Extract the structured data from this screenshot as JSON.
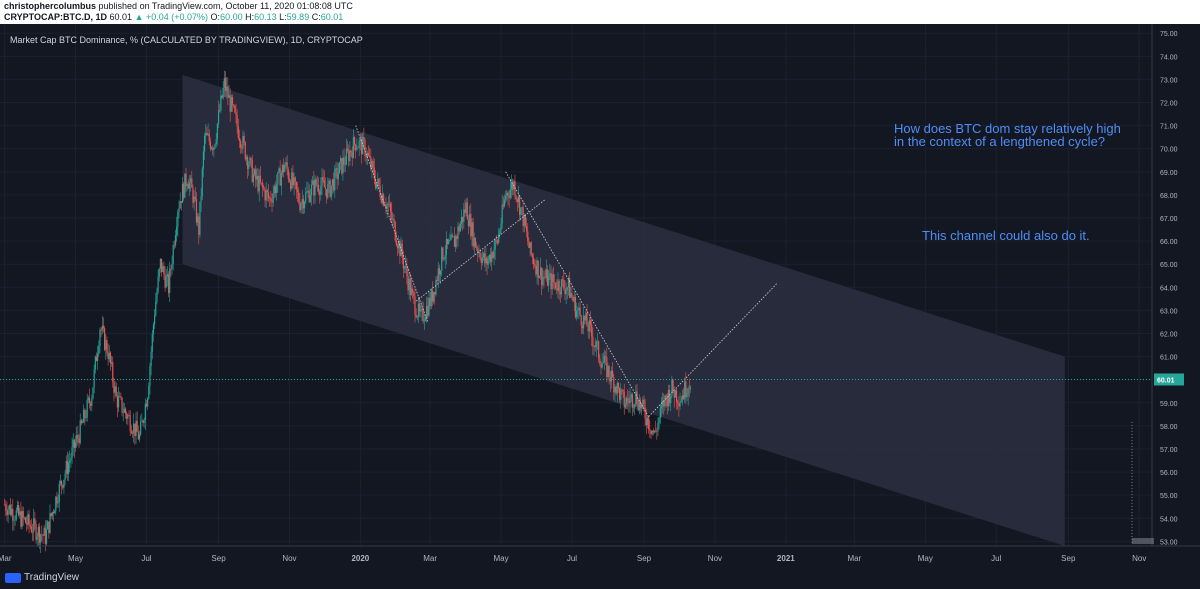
{
  "header": {
    "author": "christophercolumbus",
    "published_text": "published on TradingView.com, October 11, 2020 01:08:08 UTC",
    "symbol_line": "CRYPTOCAP:BTC.D, 1D",
    "last": "60.01",
    "change": "▲ +0.04 (+0.07%)",
    "o_label": "O:",
    "o": "60.00",
    "h_label": "H:",
    "h": "60.13",
    "l_label": "L:",
    "l": "59.89",
    "c_label": "C:",
    "c": "60.01"
  },
  "chart_title": "Market Cap BTC Dominance, % (CALCULATED BY TRADINGVIEW), 1D, CRYPTOCAP",
  "annotations": {
    "note1_line1": "How does BTC dom stay relatively high",
    "note1_line2": "in the context of a lengthened cycle?",
    "note2": "This channel could also do it."
  },
  "footer": {
    "brand": "TradingView"
  },
  "colors": {
    "background": "#131722",
    "up": "#26a69a",
    "down": "#ef5350",
    "channel_fill": "#2a2e3f",
    "note": "#4e8ef7",
    "price_line": "#26a69a"
  },
  "chart_data": {
    "type": "candlestick",
    "title": "Market Cap BTC Dominance, % (CALCULATED BY TRADINGVIEW), 1D, CRYPTOCAP",
    "ylim": [
      52.8,
      75.4
    ],
    "y_ticks": [
      "75.00",
      "74.00",
      "73.00",
      "72.00",
      "71.00",
      "70.00",
      "69.00",
      "68.00",
      "67.00",
      "66.00",
      "65.00",
      "64.00",
      "63.00",
      "62.00",
      "61.00",
      "60.00",
      "59.00",
      "58.00",
      "57.00",
      "56.00",
      "55.00",
      "54.00",
      "53.00"
    ],
    "x_ticks": [
      {
        "label": "Mar",
        "date": "2019-03-01"
      },
      {
        "label": "May",
        "date": "2019-05-01"
      },
      {
        "label": "Jul",
        "date": "2019-07-01"
      },
      {
        "label": "Sep",
        "date": "2019-09-01"
      },
      {
        "label": "Nov",
        "date": "2019-11-01"
      },
      {
        "label": "2020",
        "date": "2020-01-01"
      },
      {
        "label": "Mar",
        "date": "2020-03-01"
      },
      {
        "label": "May",
        "date": "2020-05-01"
      },
      {
        "label": "Jul",
        "date": "2020-07-01"
      },
      {
        "label": "Sep",
        "date": "2020-09-01"
      },
      {
        "label": "Nov",
        "date": "2020-11-01"
      },
      {
        "label": "2021",
        "date": "2021-01-01"
      },
      {
        "label": "Mar",
        "date": "2021-03-01"
      },
      {
        "label": "May",
        "date": "2021-05-01"
      },
      {
        "label": "Jul",
        "date": "2021-07-01"
      },
      {
        "label": "Sep",
        "date": "2021-09-01"
      },
      {
        "label": "Nov",
        "date": "2021-11-01"
      }
    ],
    "last_price": "60.01",
    "price_path": [
      {
        "date": "2019-03-01",
        "value": 54.6
      },
      {
        "date": "2019-03-20",
        "value": 53.8
      },
      {
        "date": "2019-04-05",
        "value": 53.2
      },
      {
        "date": "2019-04-15",
        "value": 55.0
      },
      {
        "date": "2019-04-25",
        "value": 56.4
      },
      {
        "date": "2019-05-05",
        "value": 57.8
      },
      {
        "date": "2019-05-15",
        "value": 59.4
      },
      {
        "date": "2019-05-22",
        "value": 62.3
      },
      {
        "date": "2019-05-29",
        "value": 61.2
      },
      {
        "date": "2019-06-05",
        "value": 59.2
      },
      {
        "date": "2019-06-15",
        "value": 58.4
      },
      {
        "date": "2019-06-25",
        "value": 57.5
      },
      {
        "date": "2019-07-02",
        "value": 59.5
      },
      {
        "date": "2019-07-08",
        "value": 63.0
      },
      {
        "date": "2019-07-13",
        "value": 65.0
      },
      {
        "date": "2019-07-20",
        "value": 64.0
      },
      {
        "date": "2019-07-28",
        "value": 67.5
      },
      {
        "date": "2019-08-05",
        "value": 68.8
      },
      {
        "date": "2019-08-10",
        "value": 68.0
      },
      {
        "date": "2019-08-15",
        "value": 66.5
      },
      {
        "date": "2019-08-20",
        "value": 70.5
      },
      {
        "date": "2019-08-28",
        "value": 70.2
      },
      {
        "date": "2019-09-06",
        "value": 72.8
      },
      {
        "date": "2019-09-12",
        "value": 71.8
      },
      {
        "date": "2019-09-20",
        "value": 70.5
      },
      {
        "date": "2019-10-01",
        "value": 68.8
      },
      {
        "date": "2019-10-15",
        "value": 67.8
      },
      {
        "date": "2019-10-28",
        "value": 69.3
      },
      {
        "date": "2019-11-10",
        "value": 67.7
      },
      {
        "date": "2019-11-25",
        "value": 68.5
      },
      {
        "date": "2019-12-05",
        "value": 68.2
      },
      {
        "date": "2019-12-15",
        "value": 69.2
      },
      {
        "date": "2019-12-28",
        "value": 70.3
      },
      {
        "date": "2020-01-05",
        "value": 70.0
      },
      {
        "date": "2020-01-15",
        "value": 68.5
      },
      {
        "date": "2020-01-25",
        "value": 67.5
      },
      {
        "date": "2020-02-05",
        "value": 65.5
      },
      {
        "date": "2020-02-15",
        "value": 63.5
      },
      {
        "date": "2020-02-22",
        "value": 62.6
      },
      {
        "date": "2020-03-02",
        "value": 63.5
      },
      {
        "date": "2020-03-12",
        "value": 65.5
      },
      {
        "date": "2020-03-22",
        "value": 66.0
      },
      {
        "date": "2020-04-01",
        "value": 67.5
      },
      {
        "date": "2020-04-08",
        "value": 66.0
      },
      {
        "date": "2020-04-18",
        "value": 65.0
      },
      {
        "date": "2020-04-28",
        "value": 66.0
      },
      {
        "date": "2020-05-05",
        "value": 68.0
      },
      {
        "date": "2020-05-12",
        "value": 68.5
      },
      {
        "date": "2020-05-20",
        "value": 67.0
      },
      {
        "date": "2020-05-26",
        "value": 65.5
      },
      {
        "date": "2020-06-05",
        "value": 64.5
      },
      {
        "date": "2020-06-15",
        "value": 64.2
      },
      {
        "date": "2020-06-28",
        "value": 64.0
      },
      {
        "date": "2020-07-05",
        "value": 63.0
      },
      {
        "date": "2020-07-15",
        "value": 62.3
      },
      {
        "date": "2020-07-25",
        "value": 61.0
      },
      {
        "date": "2020-08-05",
        "value": 60.0
      },
      {
        "date": "2020-08-15",
        "value": 59.0
      },
      {
        "date": "2020-08-25",
        "value": 59.3
      },
      {
        "date": "2020-09-05",
        "value": 58.2
      },
      {
        "date": "2020-09-10",
        "value": 57.6
      },
      {
        "date": "2020-09-18",
        "value": 59.0
      },
      {
        "date": "2020-09-25",
        "value": 59.6
      },
      {
        "date": "2020-10-02",
        "value": 59.2
      },
      {
        "date": "2020-10-11",
        "value": 60.01
      }
    ],
    "channel": {
      "upper_start": {
        "date": "2019-08-01",
        "value": 73.2
      },
      "upper_end": {
        "date": "2021-08-29",
        "value": 61.0
      },
      "lower_start": {
        "date": "2019-08-01",
        "value": 65.0
      },
      "lower_end": {
        "date": "2021-08-29",
        "value": 52.8
      }
    },
    "trendlines": [
      {
        "from": {
          "date": "2019-12-28",
          "value": 71.0
        },
        "to": {
          "date": "2020-02-28",
          "value": 62.5
        },
        "style": "dotted"
      },
      {
        "from": {
          "date": "2020-02-18",
          "value": 63.4
        },
        "to": {
          "date": "2020-06-08",
          "value": 67.8
        },
        "style": "dotted"
      },
      {
        "from": {
          "date": "2020-05-05",
          "value": 69.0
        },
        "to": {
          "date": "2020-09-05",
          "value": 58.4
        },
        "style": "dotted"
      },
      {
        "from": {
          "date": "2020-09-05",
          "value": 58.4
        },
        "to": {
          "date": "2020-12-25",
          "value": 64.2
        },
        "style": "dotted"
      }
    ]
  }
}
